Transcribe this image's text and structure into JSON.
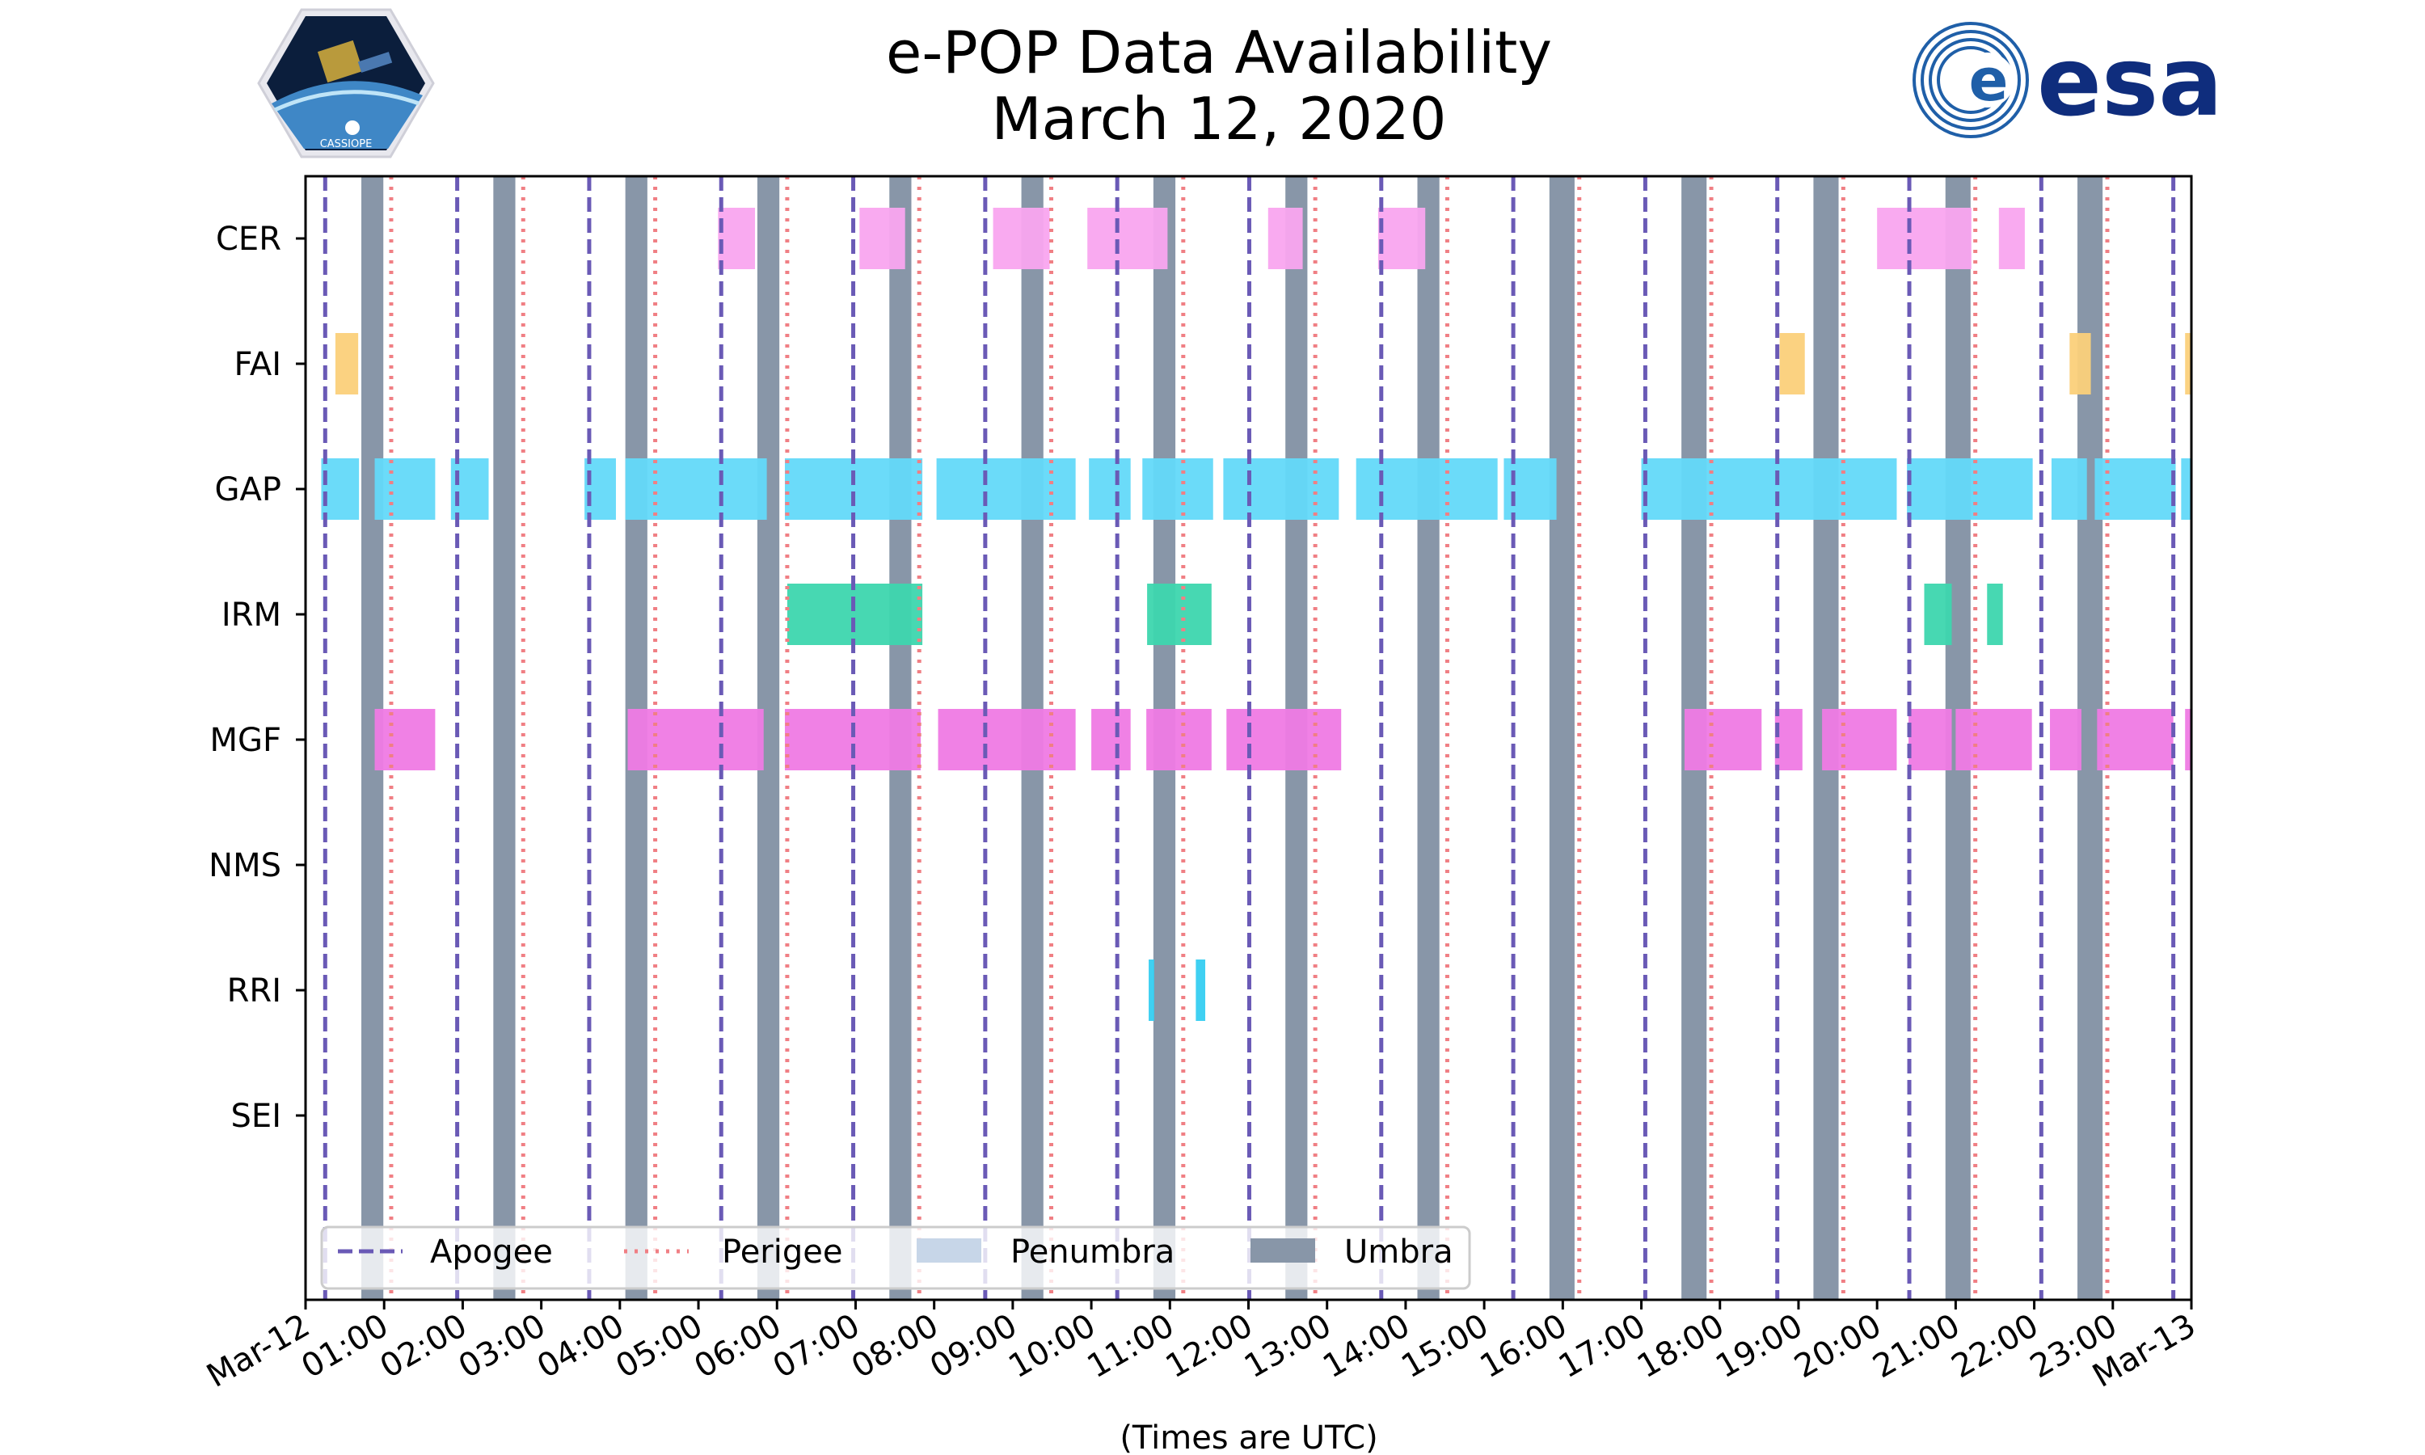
{
  "chart_data": {
    "type": "timeline",
    "title_line1": "e-POP Data Availability",
    "title_line2": "March 12, 2020",
    "xlabel": "(Times are UTC)",
    "x_range_hours": [
      0,
      24
    ],
    "x_ticks": [
      "Mar-12",
      "01:00",
      "02:00",
      "03:00",
      "04:00",
      "05:00",
      "06:00",
      "07:00",
      "08:00",
      "09:00",
      "10:00",
      "11:00",
      "12:00",
      "13:00",
      "14:00",
      "15:00",
      "16:00",
      "17:00",
      "18:00",
      "19:00",
      "20:00",
      "21:00",
      "22:00",
      "23:00",
      "Mar-13"
    ],
    "instruments": [
      "CER",
      "FAI",
      "GAP",
      "IRM",
      "MGF",
      "NMS",
      "RRI",
      "SEI"
    ],
    "colors": {
      "CER": "#f9a5ef",
      "FAI": "#fbd07a",
      "GAP": "#63d9f9",
      "IRM": "#3dd6ae",
      "MGF": "#ef7ae4",
      "RRI": "#35cdf1",
      "apogee": "#6a5ab6",
      "perigee": "#f07f84",
      "penumbra": "#c7d6e8",
      "umbra": "#8896a8"
    },
    "apogee_hours": [
      0.25,
      1.93,
      3.61,
      5.29,
      6.97,
      8.65,
      10.33,
      12.01,
      13.69,
      15.37,
      17.05,
      18.73,
      20.41,
      22.09,
      23.77
    ],
    "perigee_hours": [
      1.09,
      2.77,
      4.45,
      6.13,
      7.81,
      9.49,
      11.17,
      12.85,
      14.53,
      16.21,
      17.89,
      19.57,
      21.25,
      22.93
    ],
    "umbra_intervals": [
      [
        0.71,
        0.99
      ],
      [
        2.39,
        2.67
      ],
      [
        4.07,
        4.35
      ],
      [
        5.75,
        6.03
      ],
      [
        7.43,
        7.71
      ],
      [
        9.11,
        9.39
      ],
      [
        10.79,
        11.07
      ],
      [
        12.47,
        12.75
      ],
      [
        14.15,
        14.43
      ],
      [
        15.83,
        16.15
      ],
      [
        17.51,
        17.83
      ],
      [
        19.19,
        19.51
      ],
      [
        20.87,
        21.19
      ],
      [
        22.55,
        22.87
      ]
    ],
    "availability": {
      "CER": [
        [
          5.25,
          5.72
        ],
        [
          7.05,
          7.63
        ],
        [
          8.75,
          9.47
        ],
        [
          9.95,
          10.97
        ],
        [
          12.25,
          12.69
        ],
        [
          13.65,
          14.25
        ],
        [
          20.0,
          21.2
        ],
        [
          21.55,
          21.88
        ]
      ],
      "FAI": [
        [
          0.38,
          0.67
        ],
        [
          18.76,
          19.08
        ],
        [
          22.45,
          22.72
        ],
        [
          23.92,
          24.0
        ]
      ],
      "GAP": [
        [
          0.2,
          0.68
        ],
        [
          0.88,
          1.65
        ],
        [
          1.85,
          2.33
        ],
        [
          3.55,
          3.95
        ],
        [
          4.07,
          5.87
        ],
        [
          6.1,
          7.85
        ],
        [
          8.03,
          9.8
        ],
        [
          9.97,
          10.5
        ],
        [
          10.65,
          11.55
        ],
        [
          11.68,
          13.15
        ],
        [
          13.37,
          15.17
        ],
        [
          15.25,
          15.92
        ],
        [
          17.0,
          20.25
        ],
        [
          20.38,
          21.98
        ],
        [
          22.22,
          22.67
        ],
        [
          22.77,
          23.8
        ],
        [
          23.87,
          24.0
        ]
      ],
      "IRM": [
        [
          6.13,
          7.85
        ],
        [
          10.71,
          11.53
        ],
        [
          20.6,
          20.95
        ],
        [
          21.4,
          21.6
        ]
      ],
      "MGF": [
        [
          0.88,
          1.65
        ],
        [
          4.1,
          5.83
        ],
        [
          6.1,
          7.83
        ],
        [
          8.05,
          9.8
        ],
        [
          10.0,
          10.5
        ],
        [
          10.7,
          11.53
        ],
        [
          11.72,
          13.18
        ],
        [
          17.55,
          18.53
        ],
        [
          18.7,
          19.05
        ],
        [
          19.3,
          20.25
        ],
        [
          20.4,
          20.95
        ],
        [
          21.0,
          21.97
        ],
        [
          22.2,
          22.6
        ],
        [
          22.8,
          23.77
        ],
        [
          23.92,
          24.0
        ]
      ],
      "NMS": [],
      "RRI": [
        [
          10.73,
          10.8
        ],
        [
          11.33,
          11.45
        ]
      ],
      "SEI": []
    },
    "legend": [
      "Apogee",
      "Perigee",
      "Penumbra",
      "Umbra"
    ]
  },
  "logos": {
    "esa_text": "esa",
    "cassiope_text": "CASSIOPE"
  }
}
